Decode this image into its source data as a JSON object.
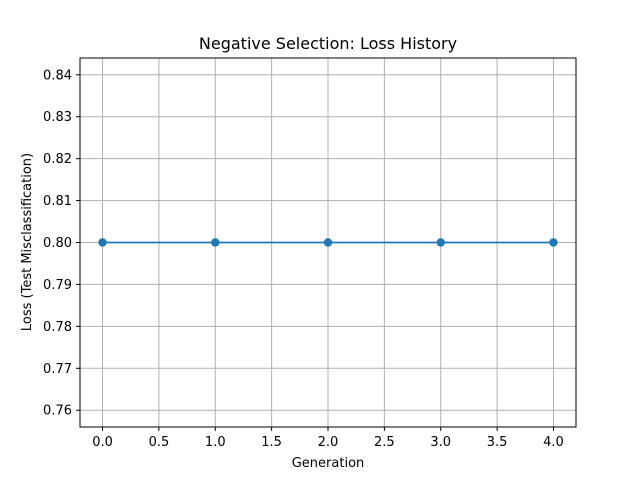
{
  "chart_data": {
    "type": "line",
    "title": "Negative Selection: Loss History",
    "xlabel": "Generation",
    "ylabel": "Loss (Test Misclassification)",
    "x": [
      0,
      1,
      2,
      3,
      4
    ],
    "series": [
      {
        "values": [
          0.8,
          0.8,
          0.8,
          0.8,
          0.8
        ],
        "color": "#1f77b4",
        "marker": "circle"
      }
    ],
    "xlim": [
      -0.2,
      4.2
    ],
    "ylim": [
      0.756,
      0.844
    ],
    "xticks": [
      0.0,
      0.5,
      1.0,
      1.5,
      2.0,
      2.5,
      3.0,
      3.5,
      4.0
    ],
    "xtick_labels": [
      "0.0",
      "0.5",
      "1.0",
      "1.5",
      "2.0",
      "2.5",
      "3.0",
      "3.5",
      "4.0"
    ],
    "yticks": [
      0.76,
      0.77,
      0.78,
      0.79,
      0.8,
      0.81,
      0.82,
      0.83,
      0.84
    ],
    "ytick_labels": [
      "0.76",
      "0.77",
      "0.78",
      "0.79",
      "0.80",
      "0.81",
      "0.82",
      "0.83",
      "0.84"
    ],
    "grid": true,
    "grid_color": "#b0b0b0",
    "line_color": "#1f77b4"
  }
}
